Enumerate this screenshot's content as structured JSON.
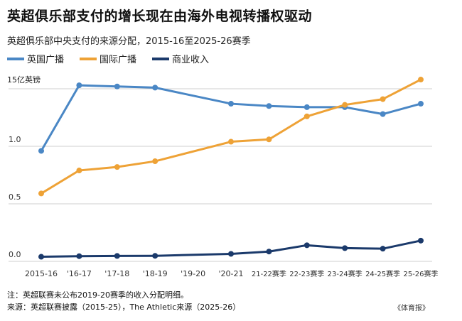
{
  "title": "英超俱乐部支付的增长现在由海外电视转播权驱动",
  "subtitle": "英超俱乐部中央支付的来源分配，2015-16至2025-26赛季",
  "unit_label": "15亿英镑",
  "note": "注：英超联赛未公布2019-20赛季的收入分配明细。",
  "source": "来源：英超联赛披露（2015-25），The Athletic来源（2025-26）",
  "brand": "《体育报》",
  "colors": {
    "domestic": "#4a87c5",
    "international": "#eea236",
    "commercial": "#1b3a6b",
    "grid": "#cfcfcf"
  },
  "chart_data": {
    "type": "line",
    "title": "英超俱乐部支付的增长现在由海外电视转播权驱动",
    "subtitle": "英超俱乐部中央支付的来源分配，2015-16至2025-26赛季",
    "ylabel": "15亿英镑",
    "ylim": [
      0,
      1.5
    ],
    "yticks": [
      {
        "value": 0.0,
        "label": "0.0"
      },
      {
        "value": 0.5,
        "label": "0.5"
      },
      {
        "value": 1.0,
        "label": "1.0"
      },
      {
        "value": 1.5,
        "label": "15亿英镑"
      }
    ],
    "categories": [
      "2015-16",
      "'16-17",
      "'17-18",
      "'18-19",
      "'19-20",
      "'20-21",
      "21-22赛季",
      "22-23赛季",
      "23-24赛季",
      "24-25赛季",
      "25-26赛季"
    ],
    "grid": true,
    "legend_position": "top-left",
    "series": [
      {
        "name": "英国广播",
        "key": "domestic",
        "values": [
          0.96,
          1.53,
          1.52,
          1.51,
          null,
          1.37,
          1.35,
          1.34,
          1.34,
          1.28,
          1.37
        ]
      },
      {
        "name": "国际广播",
        "key": "international",
        "values": [
          0.59,
          0.79,
          0.82,
          0.87,
          null,
          1.04,
          1.06,
          1.26,
          1.36,
          1.41,
          1.58
        ]
      },
      {
        "name": "商业收入",
        "key": "commercial",
        "values": [
          0.04,
          0.045,
          0.047,
          0.048,
          null,
          0.065,
          0.085,
          0.14,
          0.115,
          0.11,
          0.18
        ]
      }
    ]
  }
}
